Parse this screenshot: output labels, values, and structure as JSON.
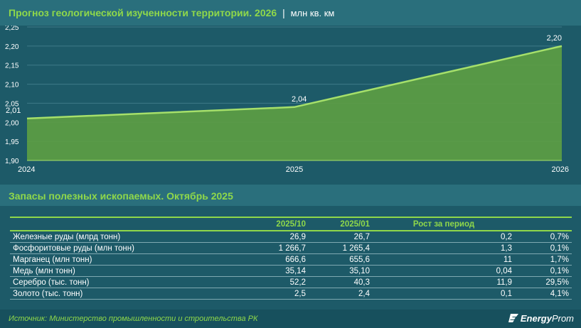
{
  "header": {
    "title": "Прогноз геологической изученности территории. 2026",
    "separator": "|",
    "unit": "млн кв. км"
  },
  "chart_data": {
    "type": "area",
    "x": [
      "2024",
      "2025",
      "2026"
    ],
    "values": [
      2.01,
      2.04,
      2.2
    ],
    "data_labels": [
      "2,01",
      "2,04",
      "2,20"
    ],
    "y_ticks": [
      "1,90",
      "1,95",
      "2,00",
      "2,05",
      "2,10",
      "2,15",
      "2,20",
      "2,25"
    ],
    "y_tick_values": [
      1.9,
      1.95,
      2.0,
      2.05,
      2.1,
      2.15,
      2.2,
      2.25
    ],
    "ylim": [
      1.9,
      2.25
    ],
    "grid": true,
    "colors": {
      "fill": "#5e9e43",
      "line": "#a6e06a",
      "grid": "#3f7b88"
    }
  },
  "table": {
    "title": "Запасы полезных ископаемых. Октябрь 2025",
    "headers": [
      "",
      "2025/10",
      "2025/01",
      "Рост за период",
      ""
    ],
    "rows": [
      [
        "Железные руды (млрд тонн)",
        "26,9",
        "26,7",
        "0,2",
        "0,7%"
      ],
      [
        "Фосфоритовые руды (млн тонн)",
        "1 266,7",
        "1 265,4",
        "1,3",
        "0,1%"
      ],
      [
        "Марганец (млн тонн)",
        "666,6",
        "655,6",
        "11",
        "1,7%"
      ],
      [
        "Медь (млн тонн)",
        "35,14",
        "35,10",
        "0,04",
        "0,1%"
      ],
      [
        "Серебро (тыс. тонн)",
        "52,2",
        "40,3",
        "11,9",
        "29,5%"
      ],
      [
        "Золото (тыс. тонн)",
        "2,5",
        "2,4",
        "0,1",
        "4,1%"
      ]
    ]
  },
  "footer": {
    "source": "Источник: Министерство промышленности и строительства РК",
    "brand_bold": "Energy",
    "brand_rest": "Prom"
  }
}
